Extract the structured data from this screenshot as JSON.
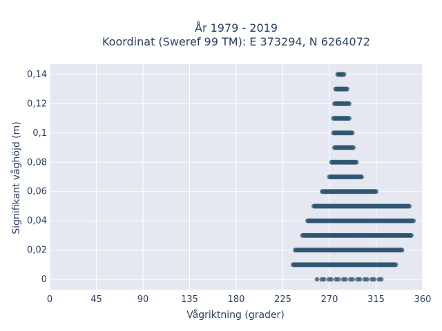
{
  "chart_data": {
    "type": "scatter",
    "title_line1": "År 1979 - 2019",
    "title_line2": "Koordinat (Sweref 99 TM): E 373294, N 6264072",
    "xlabel": "Vågriktning (grader)",
    "ylabel": "Signifikant våghöjd (m)",
    "xlim": [
      0,
      360
    ],
    "ylim": [
      -0.007,
      0.147
    ],
    "xticks": [
      0,
      45,
      90,
      135,
      180,
      225,
      270,
      315,
      360
    ],
    "xtick_labels": [
      "0",
      "45",
      "90",
      "135",
      "180",
      "225",
      "270",
      "315",
      "360"
    ],
    "yticks": [
      0,
      0.02,
      0.04,
      0.06,
      0.08,
      0.1,
      0.12,
      0.14
    ],
    "ytick_labels": [
      "0",
      "0,02",
      "0,04",
      "0,06",
      "0,08",
      "0,1",
      "0,12",
      "0,14"
    ],
    "grid": true,
    "plot_background": "#e5e8f0",
    "marker_color": "#2e5570",
    "series": [
      {
        "points_by_height": [
          {
            "y": 0.0,
            "x_min": 258,
            "x_max": 321,
            "sparse": true
          },
          {
            "y": 0.01,
            "x_min": 235,
            "x_max": 334,
            "sparse": false
          },
          {
            "y": 0.02,
            "x_min": 237,
            "x_max": 340,
            "sparse": false
          },
          {
            "y": 0.03,
            "x_min": 244,
            "x_max": 349,
            "sparse": false
          },
          {
            "y": 0.04,
            "x_min": 249,
            "x_max": 351,
            "sparse": false
          },
          {
            "y": 0.05,
            "x_min": 255,
            "x_max": 347,
            "sparse": false
          },
          {
            "y": 0.06,
            "x_min": 263,
            "x_max": 315,
            "sparse": false
          },
          {
            "y": 0.07,
            "x_min": 270,
            "x_max": 301,
            "sparse": false
          },
          {
            "y": 0.08,
            "x_min": 272,
            "x_max": 296,
            "sparse": false
          },
          {
            "y": 0.09,
            "x_min": 275,
            "x_max": 293,
            "sparse": false
          },
          {
            "y": 0.1,
            "x_min": 274,
            "x_max": 292,
            "sparse": false
          },
          {
            "y": 0.11,
            "x_min": 274,
            "x_max": 289,
            "sparse": false
          },
          {
            "y": 0.12,
            "x_min": 275,
            "x_max": 289,
            "sparse": false
          },
          {
            "y": 0.13,
            "x_min": 276,
            "x_max": 287,
            "sparse": false
          },
          {
            "y": 0.14,
            "x_min": 278,
            "x_max": 284,
            "sparse": false
          }
        ]
      }
    ]
  }
}
